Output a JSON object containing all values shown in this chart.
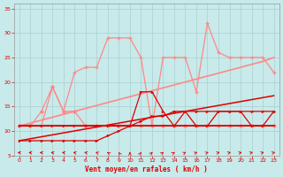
{
  "x": [
    0,
    1,
    2,
    3,
    4,
    5,
    6,
    7,
    8,
    9,
    10,
    11,
    12,
    13,
    14,
    15,
    16,
    17,
    18,
    19,
    20,
    21,
    22,
    23
  ],
  "line_light_jagged": [
    11,
    11,
    11,
    19,
    14,
    22,
    23,
    23,
    29,
    29,
    29,
    25,
    11,
    25,
    25,
    25,
    18,
    32,
    26,
    25,
    25,
    25,
    25,
    22
  ],
  "line_light_low": [
    11,
    11,
    14,
    19,
    14,
    14,
    11,
    11,
    11,
    11,
    11,
    11,
    11,
    11,
    11,
    11,
    11,
    11,
    11,
    11,
    11,
    11,
    11,
    11
  ],
  "line_light_trend": [
    11,
    11.6,
    12.2,
    12.8,
    13.4,
    14,
    14.6,
    15.2,
    15.8,
    16.4,
    17,
    17.6,
    18.2,
    18.8,
    19.4,
    20,
    20.6,
    21.2,
    21.8,
    22.4,
    23,
    23.6,
    24.2,
    25
  ],
  "line_dark_trend_low": [
    8,
    8.4,
    8.8,
    9.2,
    9.6,
    10,
    10.4,
    10.8,
    11.2,
    11.6,
    12,
    12.4,
    12.8,
    13.2,
    13.6,
    14,
    14.4,
    14.8,
    15.2,
    15.6,
    16,
    16.4,
    16.8,
    17.2
  ],
  "line_dark_flat": [
    11,
    11,
    11,
    11,
    11,
    11,
    11,
    11,
    11,
    11,
    11,
    11,
    11,
    11,
    11,
    11,
    11,
    11,
    11,
    11,
    11,
    11,
    11,
    11
  ],
  "line_dark_stepped": [
    8,
    8,
    8,
    8,
    8,
    8,
    8,
    8,
    9,
    10,
    11,
    12,
    13,
    13,
    14,
    14,
    14,
    14,
    14,
    14,
    14,
    14,
    14,
    14
  ],
  "line_dark_markers": [
    11,
    11,
    11,
    11,
    11,
    11,
    11,
    11,
    11,
    11,
    11,
    18,
    18,
    14,
    11,
    14,
    11,
    11,
    14,
    14,
    14,
    11,
    11,
    14
  ],
  "bg_color": "#c8eaea",
  "grid_color": "#aacece",
  "light_color": "#ff8888",
  "dark_color": "#dd0000",
  "xlabel": "Vent moyen/en rafales ( km/h )",
  "ylim": [
    5,
    36
  ],
  "xlim": [
    -0.5,
    23.5
  ],
  "yticks": [
    5,
    10,
    15,
    20,
    25,
    30,
    35
  ],
  "xticks": [
    0,
    1,
    2,
    3,
    4,
    5,
    6,
    7,
    8,
    9,
    10,
    11,
    12,
    13,
    14,
    15,
    16,
    17,
    18,
    19,
    20,
    21,
    22,
    23
  ],
  "arrow_angles_deg": [
    200,
    200,
    200,
    205,
    210,
    215,
    220,
    230,
    250,
    260,
    270,
    280,
    285,
    290,
    295,
    300,
    305,
    310,
    315,
    315,
    315,
    315,
    315,
    315
  ]
}
